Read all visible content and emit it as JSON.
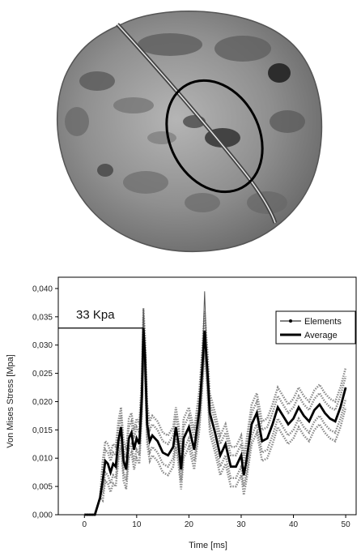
{
  "figure_top": {
    "description_icon": "brain-fe-mesh-icon"
  },
  "chart_data": {
    "type": "line",
    "xlabel": "Time [ms]",
    "ylabel": "Von Mises Stress [Mpa]",
    "xlim": [
      -5,
      52
    ],
    "ylim": [
      0,
      0.042
    ],
    "x_ticks": [
      "0",
      "10",
      "20",
      "30",
      "40",
      "50"
    ],
    "y_ticks": [
      "0,000",
      "0,005",
      "0,010",
      "0,015",
      "0,020",
      "0,025",
      "0,030",
      "0,035",
      "0,040"
    ],
    "annotation": {
      "text": "33 Kpa",
      "y": 0.033,
      "x_end": 11.2
    },
    "legend": {
      "position": "top-right",
      "items": [
        "Elements",
        "Average"
      ]
    },
    "series": [
      {
        "name": "Average",
        "x": [
          0,
          2,
          3,
          3.5,
          4,
          4.5,
          5,
          5.5,
          6,
          6.5,
          7,
          7.5,
          8,
          8.5,
          9,
          9.5,
          10,
          10.5,
          11,
          11.3,
          11.6,
          12,
          12.5,
          13,
          14,
          15,
          16,
          17,
          17.5,
          18,
          18.5,
          19,
          20,
          21,
          22,
          22.5,
          23,
          23.5,
          24,
          25,
          26,
          27,
          28,
          29,
          30,
          30.5,
          31,
          32,
          33,
          34,
          35,
          36,
          37,
          38,
          39,
          40,
          41,
          42,
          43,
          44,
          45,
          46,
          47,
          48,
          49,
          50
        ],
        "y": [
          0,
          0,
          0.003,
          0.006,
          0.0095,
          0.009,
          0.0075,
          0.009,
          0.0085,
          0.013,
          0.0155,
          0.0095,
          0.008,
          0.0135,
          0.0145,
          0.0115,
          0.0135,
          0.0125,
          0.021,
          0.033,
          0.028,
          0.016,
          0.013,
          0.014,
          0.013,
          0.011,
          0.0105,
          0.012,
          0.0155,
          0.0125,
          0.008,
          0.0135,
          0.0155,
          0.0115,
          0.0185,
          0.025,
          0.0325,
          0.026,
          0.018,
          0.0145,
          0.0105,
          0.0125,
          0.0085,
          0.0085,
          0.0105,
          0.007,
          0.0095,
          0.016,
          0.018,
          0.013,
          0.0135,
          0.016,
          0.019,
          0.0175,
          0.016,
          0.017,
          0.019,
          0.0175,
          0.0165,
          0.0185,
          0.0195,
          0.018,
          0.017,
          0.0165,
          0.019,
          0.0225
        ]
      }
    ]
  }
}
